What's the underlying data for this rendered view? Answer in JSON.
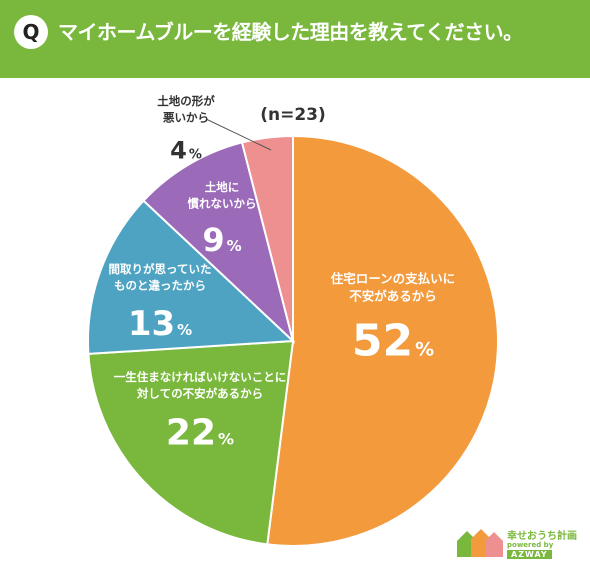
{
  "header": {
    "badge": "Q",
    "question": "マイホームブルーを経験した理由を教えてください。"
  },
  "chart_data": {
    "type": "pie",
    "title": "",
    "sample_size": "(n=23)",
    "unit": "%",
    "slices": [
      {
        "label_lines": [
          "住宅ローンの支払いに",
          "不安があるから"
        ],
        "value": 52,
        "color": "#f39a3d"
      },
      {
        "label_lines": [
          "一生住まなければいけないことに",
          "対しての不安があるから"
        ],
        "value": 22,
        "color": "#7ab83d"
      },
      {
        "label_lines": [
          "間取りが思っていた",
          "ものと違ったから"
        ],
        "value": 13,
        "color": "#4ea3c2"
      },
      {
        "label_lines": [
          "土地に",
          "慣れないから"
        ],
        "value": 9,
        "color": "#9b6ab8"
      },
      {
        "label_lines": [
          "土地の形が",
          "悪いから"
        ],
        "value": 4,
        "color": "#ee9090"
      }
    ]
  },
  "logo": {
    "title": "幸せおうち計画",
    "sub": "powered by",
    "brand": "AZWAY",
    "colors": [
      "#7ab83d",
      "#f39a3d",
      "#ee9090"
    ]
  }
}
